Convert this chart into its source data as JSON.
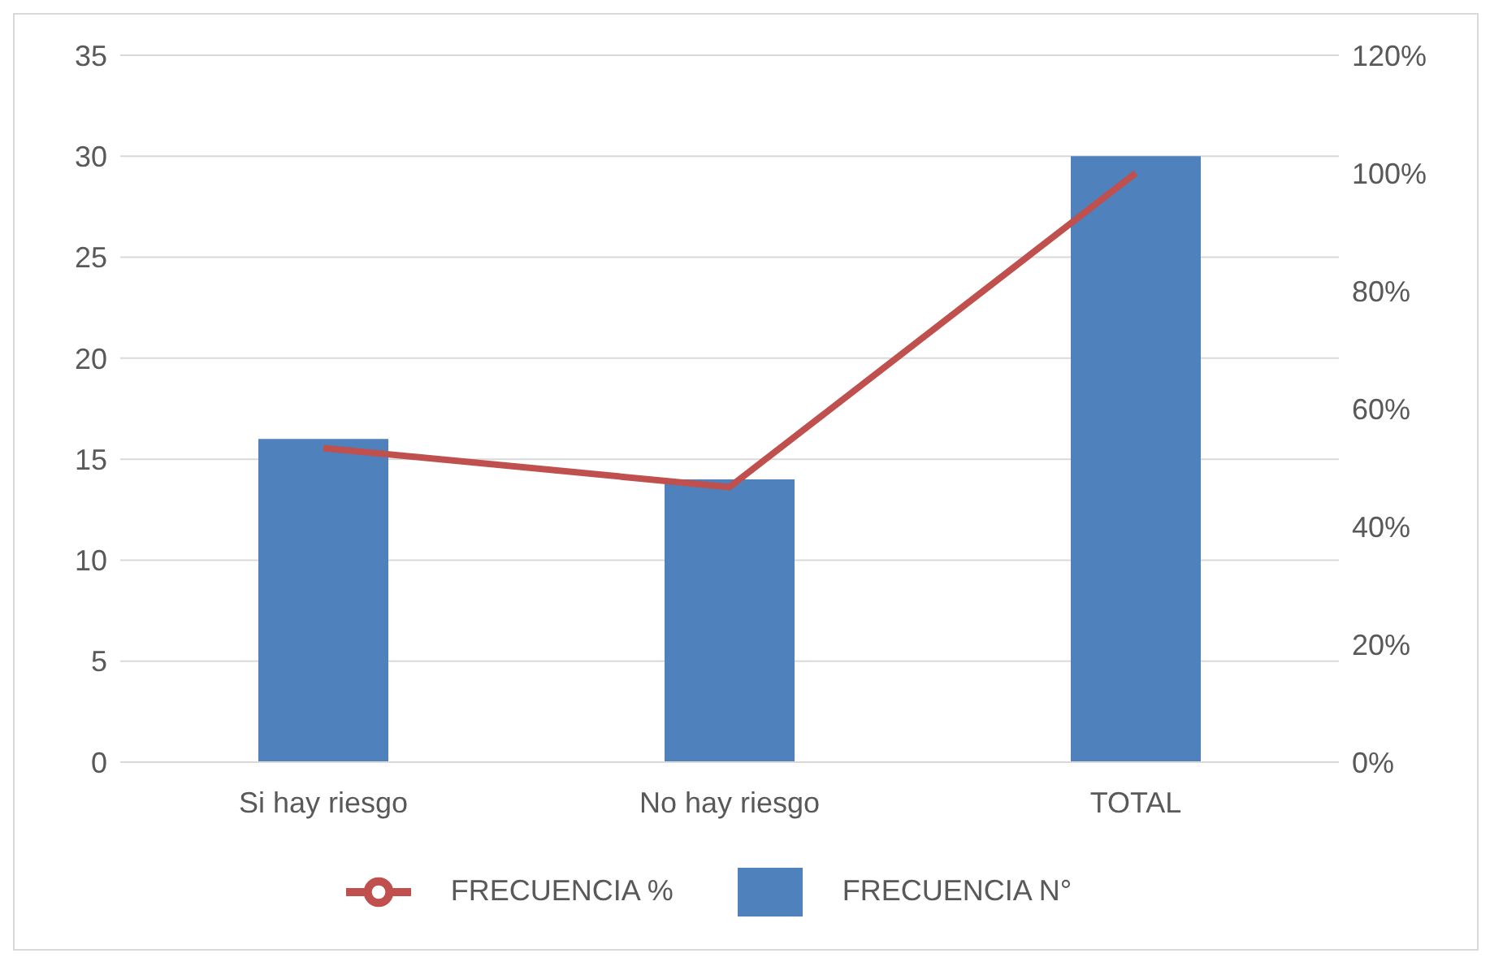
{
  "chart_data": {
    "type": "bar",
    "categories": [
      "Si hay riesgo",
      "No hay riesgo",
      "TOTAL"
    ],
    "series": [
      {
        "name": "FRECUENCIA N°",
        "color": "#4f81bd",
        "values": [
          16,
          14,
          30
        ]
      },
      {
        "name": "FRECUENCIA %",
        "type": "line",
        "axis": "y2",
        "color": "#c0504d",
        "values": [
          53.3,
          46.7,
          100
        ]
      }
    ],
    "ylim": [
      0,
      35
    ],
    "yticks": [
      0,
      5,
      10,
      15,
      20,
      25,
      30,
      35
    ],
    "y2lim": [
      0,
      120
    ],
    "y2ticks": [
      {
        "value": 0,
        "label": "0%"
      },
      {
        "value": 20,
        "label": "20%"
      },
      {
        "value": 40,
        "label": "40%"
      },
      {
        "value": 60,
        "label": "60%"
      },
      {
        "value": 80,
        "label": "80%"
      },
      {
        "value": 100,
        "label": "100%"
      },
      {
        "value": 120,
        "label": "120%"
      }
    ],
    "grid": "y",
    "legend": "bottom",
    "marker": "none"
  }
}
